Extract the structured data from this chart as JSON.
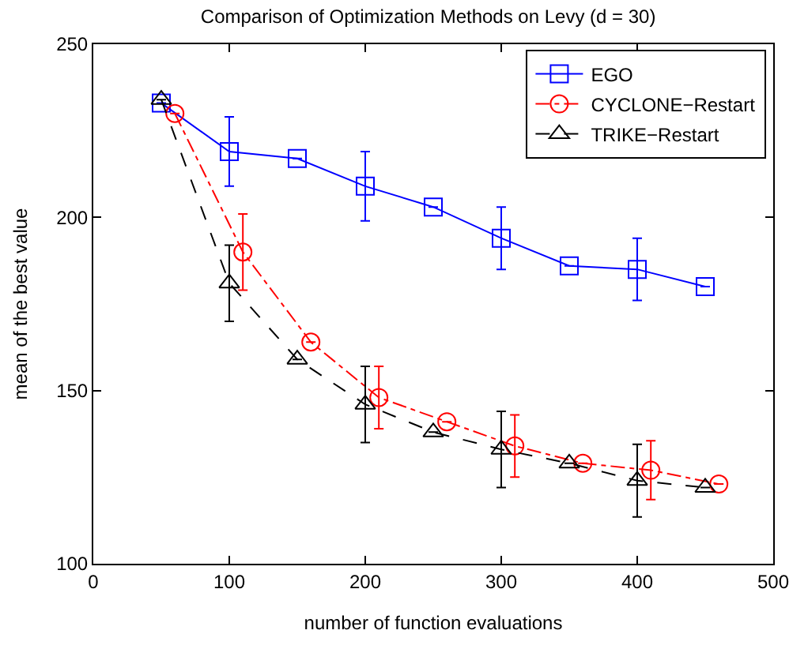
{
  "chart_data": {
    "type": "line",
    "title": "Comparison of Optimization Methods on Levy (d = 30)",
    "xlabel": "number of function evaluations",
    "ylabel": "mean of the best value",
    "xlim": [
      0,
      500
    ],
    "ylim": [
      100,
      250
    ],
    "xticks": [
      0,
      100,
      200,
      300,
      400,
      500
    ],
    "yticks": [
      100,
      150,
      200,
      250
    ],
    "legend": "top right",
    "series": [
      {
        "name": "EGO",
        "color": "#0000ff",
        "marker": "square",
        "line_style": "solid",
        "x": [
          50,
          100,
          150,
          200,
          250,
          300,
          350,
          400,
          450
        ],
        "values": [
          233,
          219,
          217,
          209,
          203,
          194,
          186,
          185,
          180
        ],
        "errors": [
          null,
          10,
          null,
          10,
          null,
          9,
          null,
          9,
          null
        ]
      },
      {
        "name": "CYCLONE−Restart",
        "color": "#ff0000",
        "marker": "circle",
        "line_style": "dashdot",
        "x": [
          60,
          110,
          160,
          210,
          260,
          310,
          360,
          410,
          460
        ],
        "values": [
          230,
          190,
          164,
          148,
          141,
          134,
          129,
          127,
          123
        ],
        "errors": [
          null,
          11,
          null,
          9,
          null,
          9,
          null,
          8.5,
          null
        ]
      },
      {
        "name": "TRIKE−Restart",
        "color": "#000000",
        "marker": "triangle",
        "line_style": "dashed",
        "x": [
          50,
          100,
          150,
          200,
          250,
          300,
          350,
          400,
          450
        ],
        "values": [
          234,
          181,
          159,
          146,
          138,
          133,
          129,
          124,
          122
        ],
        "errors": [
          null,
          11,
          null,
          11,
          null,
          11,
          null,
          10.5,
          null
        ]
      }
    ]
  }
}
